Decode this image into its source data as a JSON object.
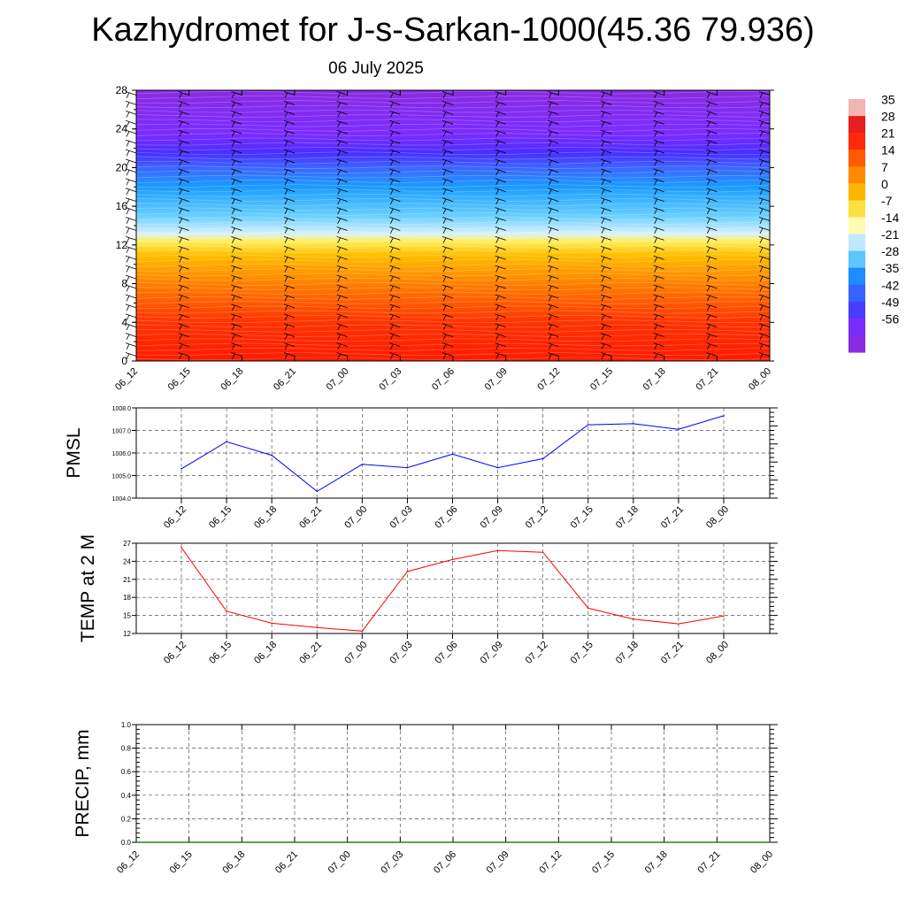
{
  "title": "Kazhydromet for J-s-Sarkan-1000(45.36 79.936)",
  "subtitle": "06 July 2025",
  "chart_data": [
    {
      "type": "heatmap",
      "ylim": [
        0,
        28
      ],
      "yticks": [
        "0",
        "4",
        "8",
        "12",
        "16",
        "20",
        "24",
        "28"
      ],
      "xticks": [
        "06_12",
        "06_15",
        "06_18",
        "06_21",
        "07_00",
        "07_03",
        "07_06",
        "07_09",
        "07_12",
        "07_15",
        "07_18",
        "07_21",
        "08_00"
      ],
      "colorbar": {
        "labels": [
          "35",
          "28",
          "21",
          "14",
          "7",
          "0",
          "-7",
          "-14",
          "-21",
          "-28",
          "-35",
          "-42",
          "-49",
          "-56"
        ],
        "colors": [
          "#f3b4b4",
          "#e51f1f",
          "#ff2a0a",
          "#ff5a00",
          "#ff8a00",
          "#ffb400",
          "#ffe040",
          "#fffbb0",
          "#c0e8ff",
          "#5ac8ff",
          "#1c8cff",
          "#3464ff",
          "#4a3cff",
          "#7a2cff",
          "#8a2be2"
        ]
      },
      "bands": [
        {
          "y": 0,
          "color": "#ff1a00"
        },
        {
          "y": 4,
          "color": "#ff3300"
        },
        {
          "y": 8,
          "color": "#ff8000"
        },
        {
          "y": 11,
          "color": "#ffc000"
        },
        {
          "y": 12.4,
          "color": "#fff060"
        },
        {
          "y": 13.2,
          "color": "#d8f0ff"
        },
        {
          "y": 15,
          "color": "#68d0ff"
        },
        {
          "y": 18,
          "color": "#1a9cff"
        },
        {
          "y": 20,
          "color": "#3d64ff"
        },
        {
          "y": 21.5,
          "color": "#4a2dff"
        },
        {
          "y": 23.5,
          "color": "#7a2cff"
        },
        {
          "y": 28,
          "color": "#8a2be2"
        }
      ]
    },
    {
      "type": "line",
      "ylabel": "PMSL",
      "ylim": [
        1004,
        1008
      ],
      "yticks": [
        "1004.0",
        "1005.0",
        "1006.0",
        "1007.0",
        "1008.0"
      ],
      "x": [
        "06_12",
        "06_15",
        "06_18",
        "06_21",
        "07_00",
        "07_03",
        "07_06",
        "07_09",
        "07_12",
        "07_15",
        "07_18",
        "07_21",
        "08_00"
      ],
      "series": [
        {
          "values": [
            1005.3,
            1006.5,
            1005.9,
            1004.3,
            1005.5,
            1005.35,
            1005.95,
            1005.35,
            1005.75,
            1007.25,
            1007.3,
            1007.05,
            1007.65
          ],
          "color": "#0000ff"
        }
      ]
    },
    {
      "type": "line",
      "ylabel": "TEMP at 2 M",
      "ylim": [
        12,
        27
      ],
      "yticks": [
        "12",
        "15",
        "18",
        "21",
        "24",
        "27"
      ],
      "x": [
        "06_12",
        "06_15",
        "06_18",
        "06_21",
        "07_00",
        "07_03",
        "07_06",
        "07_09",
        "07_12",
        "07_15",
        "07_18",
        "07_21",
        "08_00"
      ],
      "series": [
        {
          "values": [
            26.3,
            15.7,
            13.7,
            13.0,
            12.4,
            22.3,
            24.3,
            25.8,
            25.5,
            16.2,
            14.4,
            13.6,
            14.9
          ],
          "color": "#ff0000"
        }
      ]
    },
    {
      "type": "line",
      "ylabel": "PRECIP, mm",
      "ylim": [
        0,
        1
      ],
      "yticks": [
        "0.0",
        "0.2",
        "0.4",
        "0.6",
        "0.8",
        "1.0"
      ],
      "x": [
        "06_12",
        "06_15",
        "06_18",
        "06_21",
        "07_00",
        "07_03",
        "07_06",
        "07_09",
        "07_12",
        "07_15",
        "07_18",
        "07_21",
        "08_00"
      ],
      "series": [
        {
          "values": [
            0,
            0,
            0,
            0,
            0,
            0,
            0,
            0,
            0,
            0,
            0,
            0,
            0
          ],
          "color": "#006400"
        }
      ]
    }
  ]
}
